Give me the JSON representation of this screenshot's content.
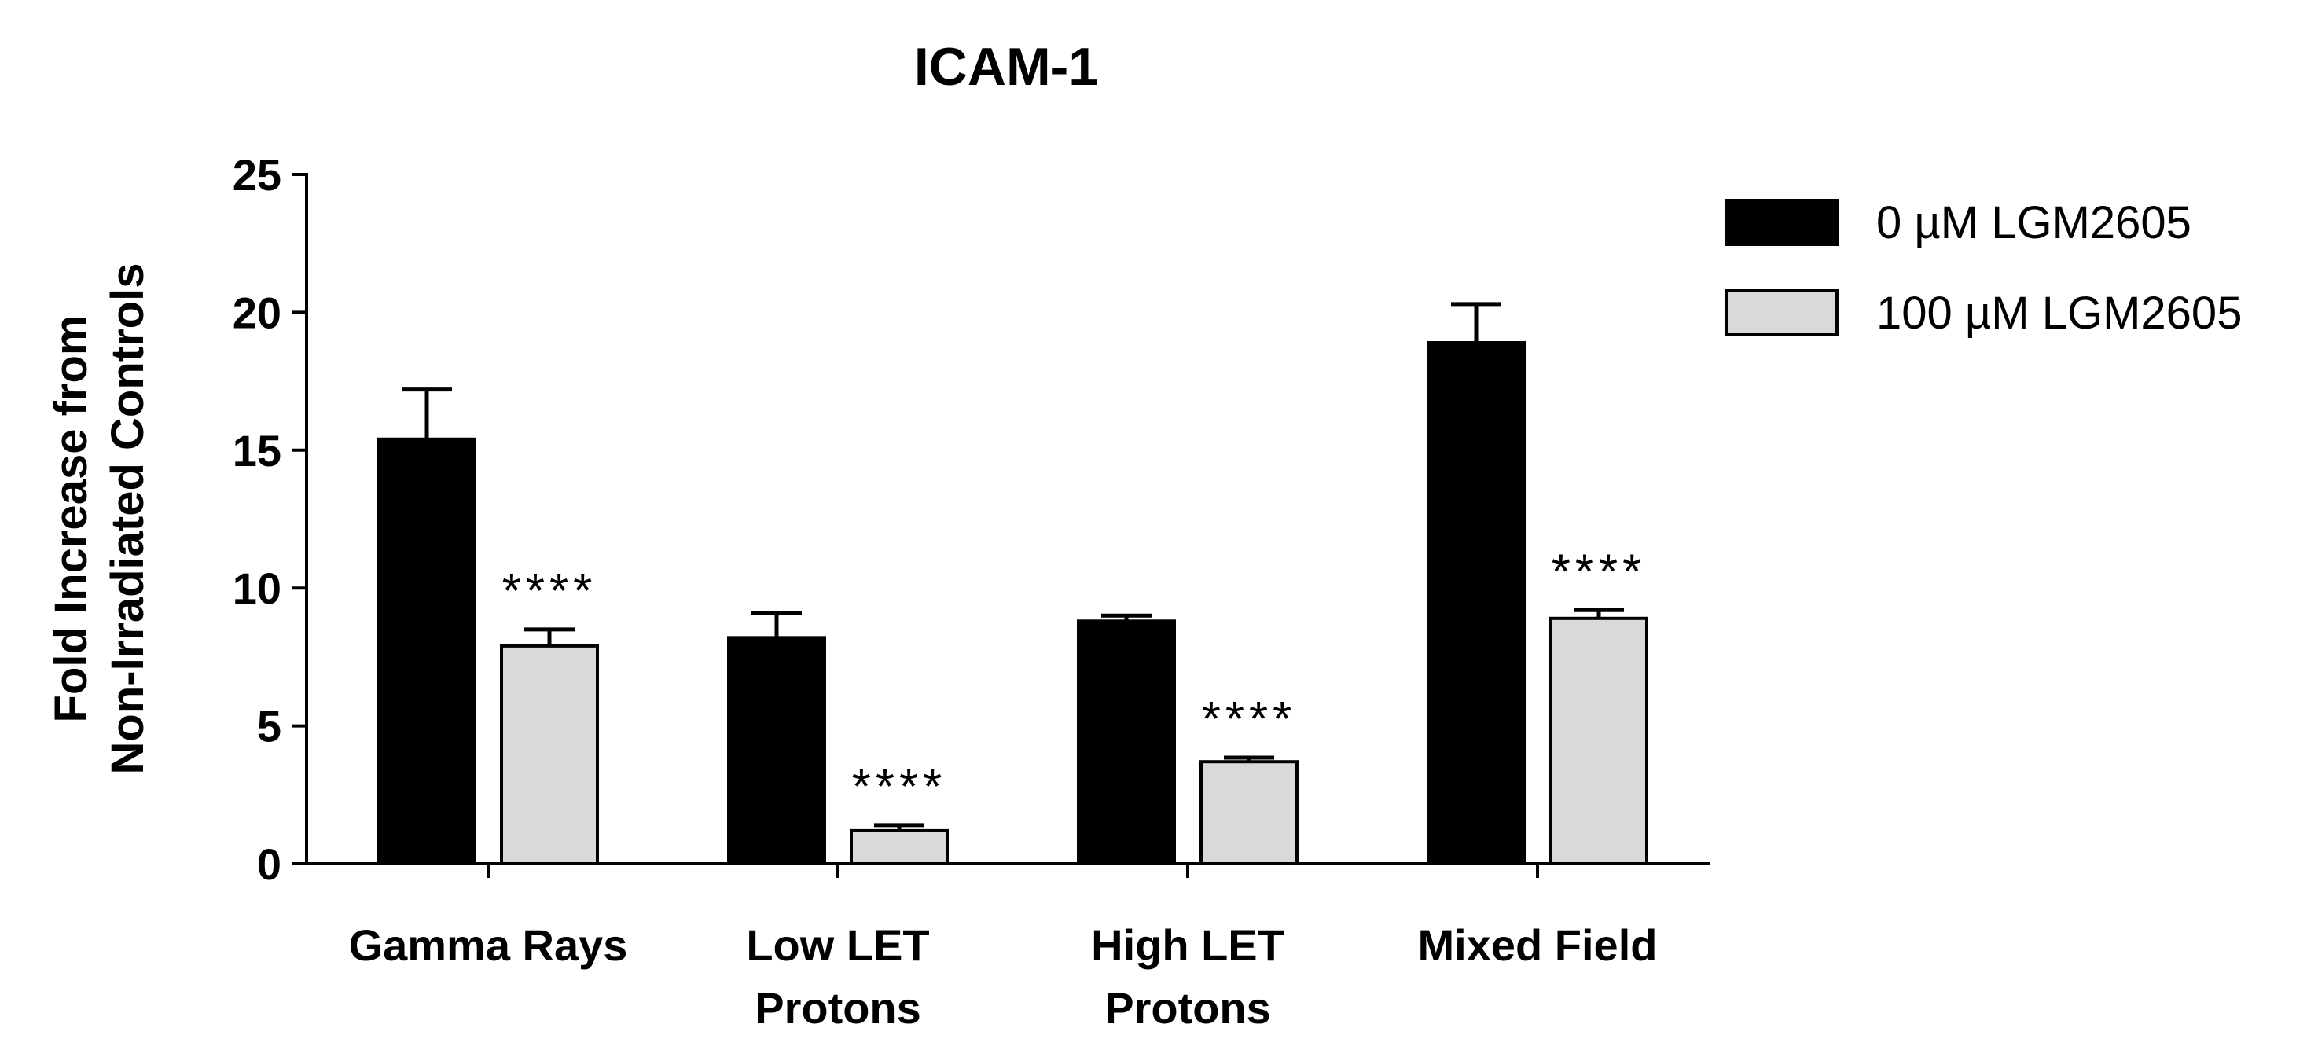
{
  "chart_data": {
    "type": "bar",
    "title": "ICAM-1",
    "xlabel": "",
    "ylabel_lines": [
      "Fold Increase from",
      "Non-Irradiated Controls"
    ],
    "ylim": [
      0,
      25
    ],
    "yticks": [
      0,
      5,
      10,
      15,
      20,
      25
    ],
    "grid": false,
    "legend_position": "top-right",
    "categories": [
      {
        "lines": [
          "Gamma Rays"
        ]
      },
      {
        "lines": [
          "Low LET",
          "Protons"
        ]
      },
      {
        "lines": [
          "High LET",
          "Protons"
        ]
      },
      {
        "lines": [
          "Mixed Field"
        ]
      }
    ],
    "series": [
      {
        "name": "0 µM LGM2605",
        "color": "#000000",
        "values": [
          15.4,
          8.2,
          8.8,
          18.9
        ],
        "errors": [
          1.8,
          0.9,
          0.2,
          1.4
        ]
      },
      {
        "name": "100 µM LGM2605",
        "color": "#d9d9d9",
        "values": [
          7.9,
          1.2,
          3.7,
          8.9
        ],
        "errors": [
          0.6,
          0.2,
          0.15,
          0.3
        ]
      }
    ],
    "annotations": [
      {
        "category_index": 0,
        "series_index": 1,
        "text": "****"
      },
      {
        "category_index": 1,
        "series_index": 1,
        "text": "****"
      },
      {
        "category_index": 2,
        "series_index": 1,
        "text": "****"
      },
      {
        "category_index": 3,
        "series_index": 1,
        "text": "****"
      }
    ]
  }
}
